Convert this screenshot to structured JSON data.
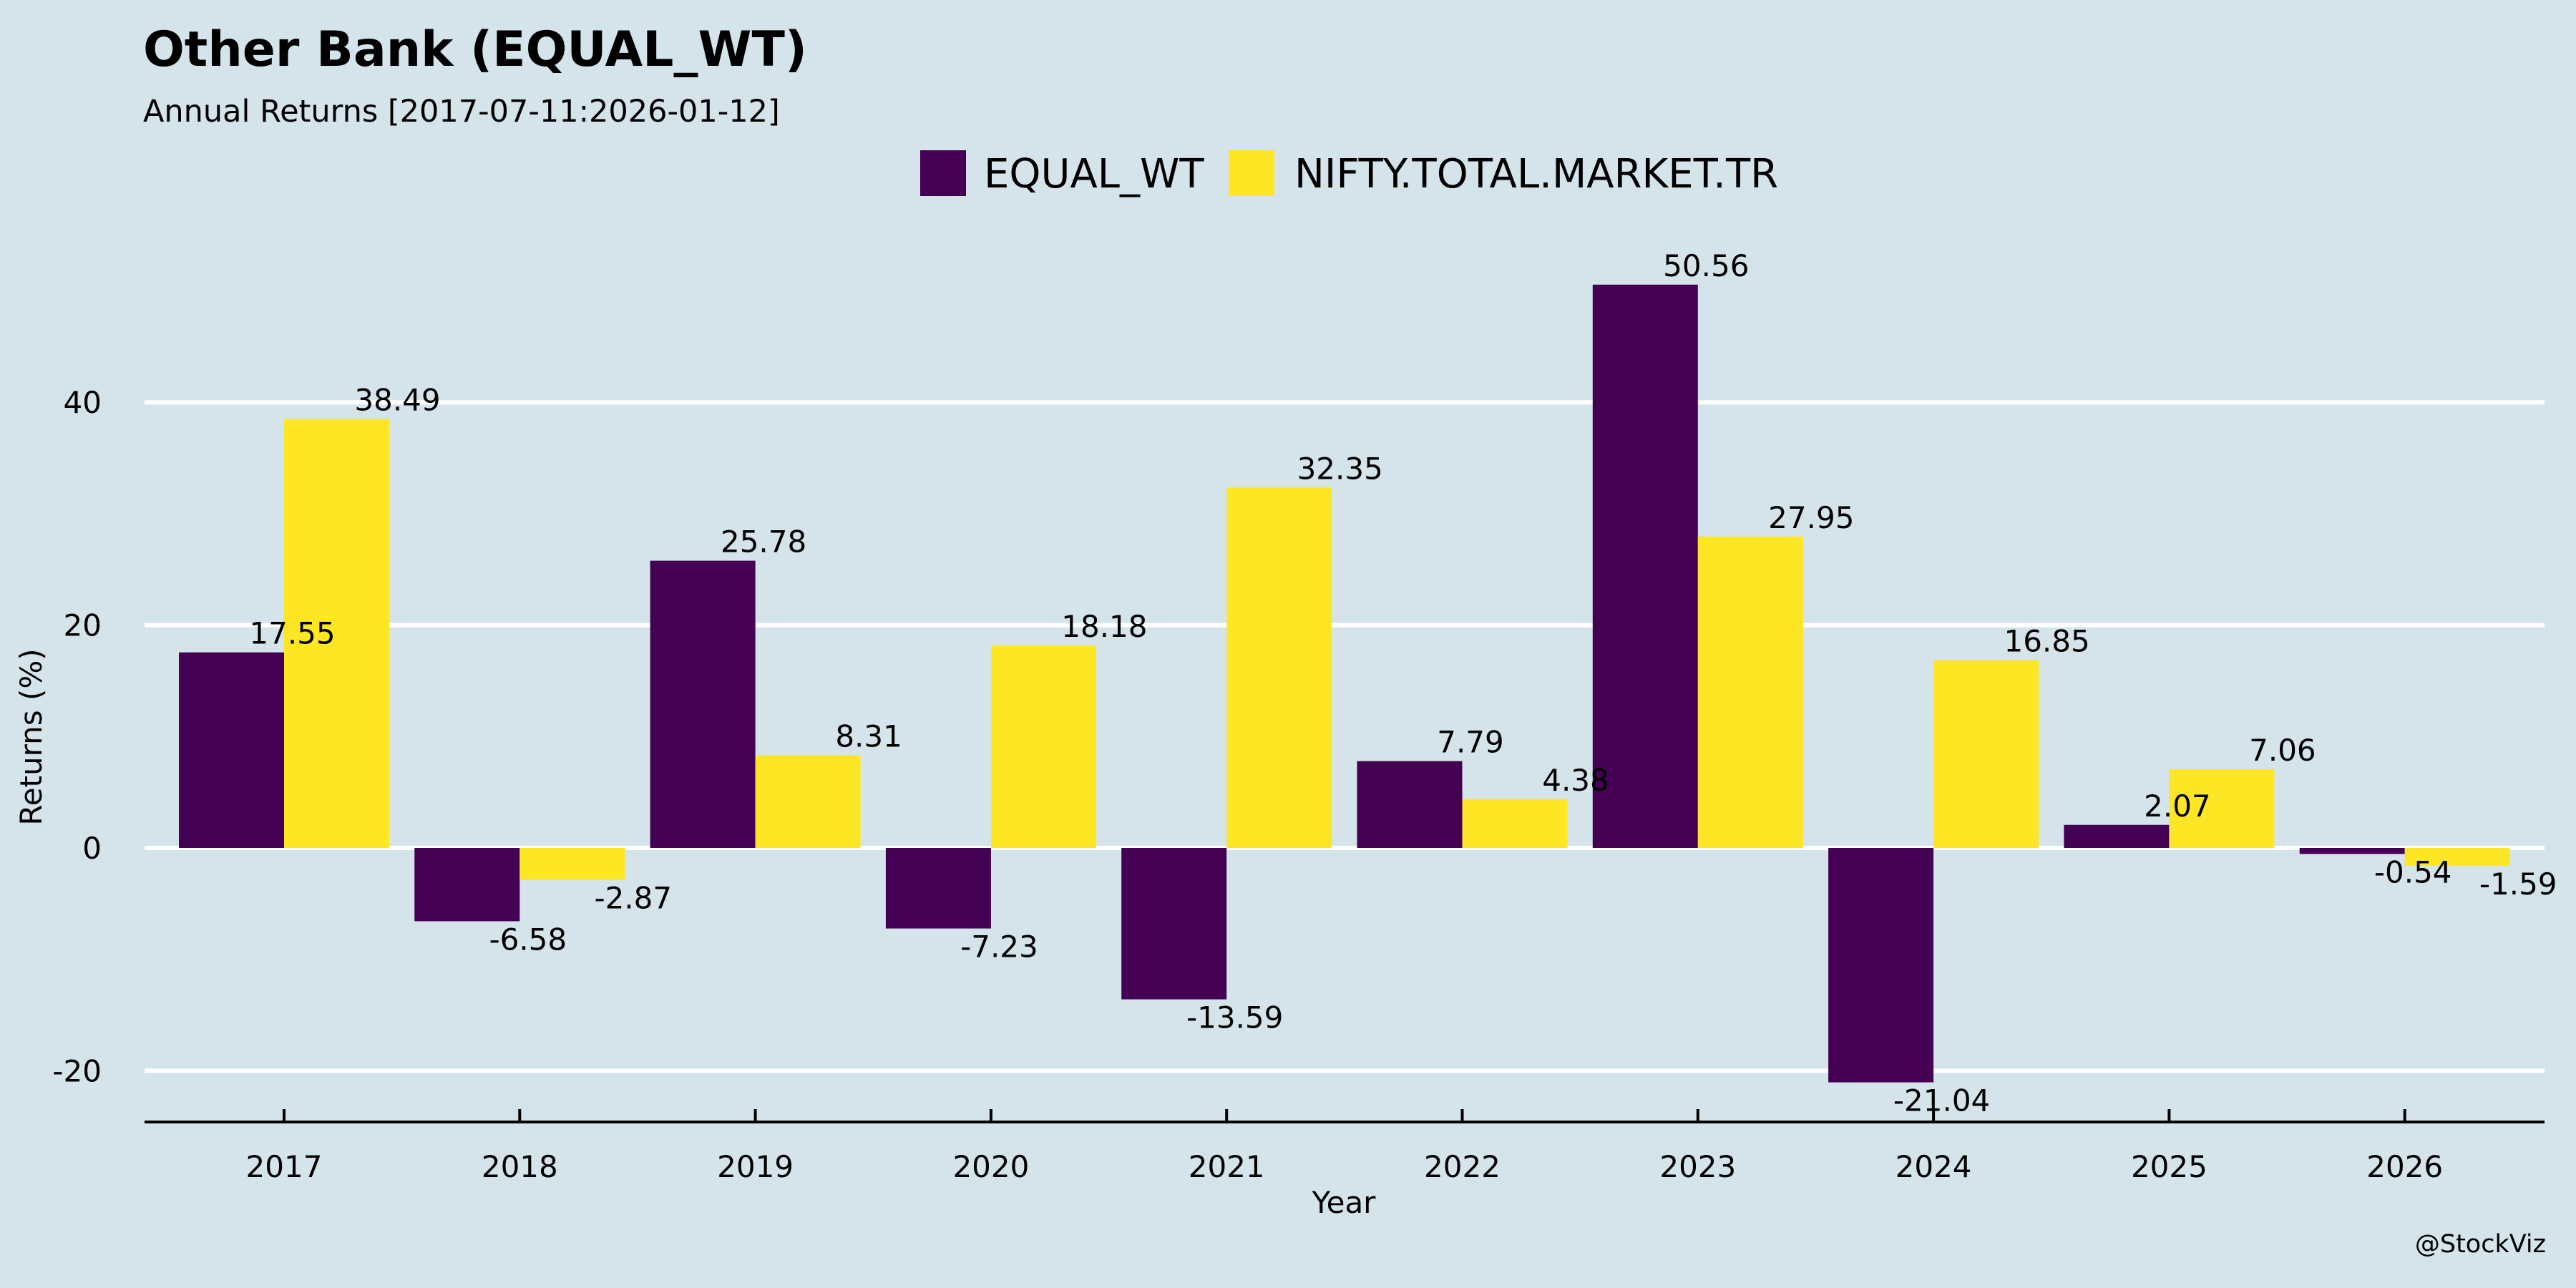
{
  "chart_data": {
    "type": "bar",
    "title": "Other Bank (EQUAL_WT)",
    "subtitle": "Annual Returns [2017-07-11:2026-01-12]",
    "xlabel": "Year",
    "ylabel": "Returns (%)",
    "categories": [
      "2017",
      "2018",
      "2019",
      "2020",
      "2021",
      "2022",
      "2023",
      "2024",
      "2025",
      "2026"
    ],
    "series": [
      {
        "name": "EQUAL_WT",
        "color": "#440154",
        "values": [
          17.55,
          -6.58,
          25.78,
          -7.23,
          -13.59,
          7.79,
          50.56,
          -21.04,
          2.07,
          -0.54
        ]
      },
      {
        "name": "NIFTY.TOTAL.MARKET.TR",
        "color": "#fde725",
        "values": [
          38.49,
          -2.87,
          8.31,
          18.18,
          32.35,
          4.38,
          27.95,
          16.85,
          7.06,
          -1.59
        ]
      }
    ],
    "yticks": [
      -20,
      0,
      20,
      40
    ],
    "ylim": [
      -24.6,
      56
    ],
    "grid": "horizontal",
    "legend_position": "top-center",
    "background": "#d5e4eb",
    "watermark": "@StockViz"
  }
}
